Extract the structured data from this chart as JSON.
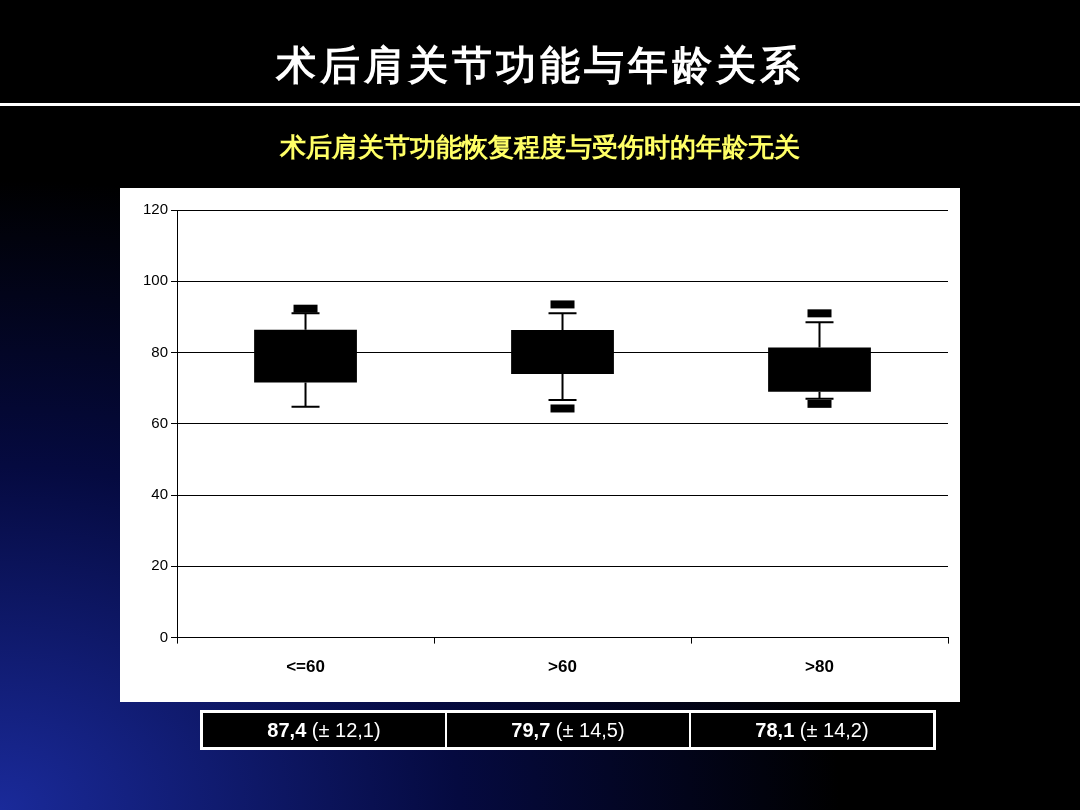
{
  "chart_data": {
    "type": "box",
    "title": "术后肩关节功能与年龄关系",
    "subtitle": "术后肩关节功能恢复程度与受伤时的年龄无关",
    "categories": [
      "<=60",
      ">60",
      ">80"
    ],
    "boxes": [
      {
        "low": 64.8,
        "q1": 71.6,
        "q3": 86.4,
        "high": 91.0,
        "outliers": [
          92.3
        ]
      },
      {
        "low": 66.7,
        "q1": 74.0,
        "q3": 86.3,
        "high": 91.0,
        "outliers": [
          93.5,
          64.3
        ]
      },
      {
        "low": 67.0,
        "q1": 69.0,
        "q3": 81.4,
        "high": 88.5,
        "outliers": [
          91.0,
          65.6
        ]
      }
    ],
    "color": "#000000",
    "ylim": [
      0,
      120
    ],
    "yticks": [
      0,
      20,
      40,
      60,
      80,
      100,
      120
    ],
    "grid": "y",
    "legend": false,
    "annotations": [
      "87,4 (± 12,1)",
      "79,7 (± 14,5)",
      "78,1 (± 14,2)"
    ]
  }
}
